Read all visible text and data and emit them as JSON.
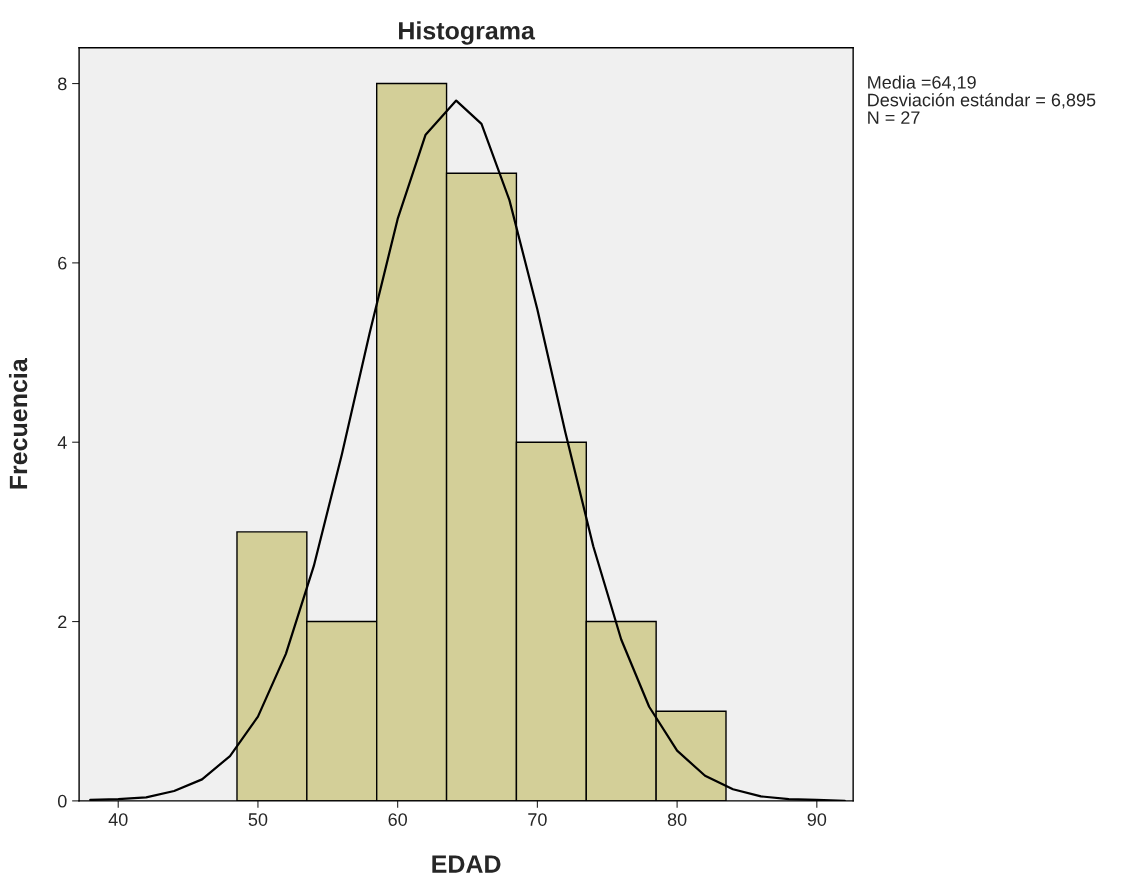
{
  "chart_data": {
    "type": "histogram",
    "title": "Histograma",
    "xlabel": "EDAD",
    "ylabel": "Frecuencia",
    "bins": [
      48.5,
      53.5,
      58.5,
      63.5,
      68.5,
      73.5,
      78.5,
      83.5
    ],
    "values": [
      3,
      2,
      8,
      7,
      4,
      2,
      1
    ],
    "color": "#d3cf98",
    "series": [
      {
        "type": "line",
        "color": "#000000",
        "x": [
          38,
          40,
          42,
          44,
          46,
          48,
          50,
          52,
          54,
          56,
          58,
          60,
          62,
          64.19,
          66,
          68,
          70,
          72,
          74,
          76,
          78,
          80,
          82,
          84,
          86,
          88,
          90,
          92
        ],
        "values": [
          0.01,
          0.02,
          0.04,
          0.11,
          0.24,
          0.5,
          0.94,
          1.64,
          2.62,
          3.86,
          5.22,
          6.49,
          7.43,
          7.81,
          7.55,
          6.7,
          5.48,
          4.11,
          2.84,
          1.8,
          1.05,
          0.56,
          0.28,
          0.13,
          0.05,
          0.02,
          0.01,
          0.0
        ]
      }
    ],
    "xlim": [
      37.2,
      92.6
    ],
    "xticks": [
      40,
      50,
      60,
      70,
      80,
      90
    ],
    "ylim": [
      0,
      8.4
    ],
    "yticks": [
      0,
      2,
      4,
      6,
      8
    ],
    "grid": false,
    "legend": false,
    "annotations": [
      "Media =64,19",
      "Desviación estándar = 6,895",
      "N = 27"
    ]
  }
}
